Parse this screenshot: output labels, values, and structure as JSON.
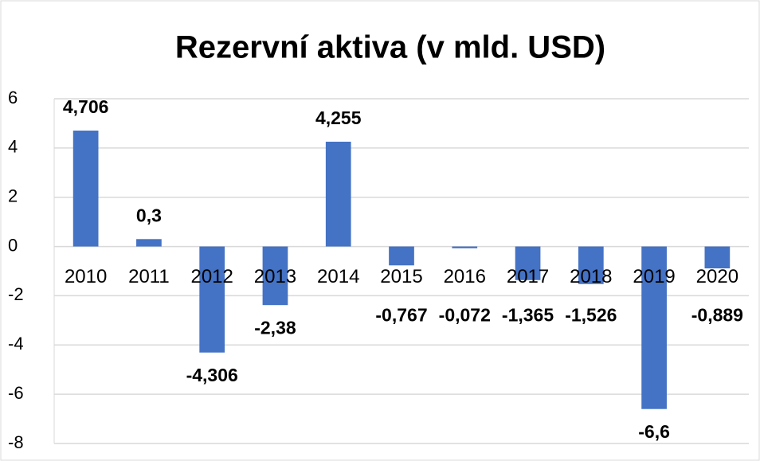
{
  "chart_data": {
    "type": "bar",
    "title": "Rezervní aktiva (v mld. USD)",
    "categories": [
      "2010",
      "2011",
      "2012",
      "2013",
      "2014",
      "2015",
      "2016",
      "2017",
      "2018",
      "2019",
      "2020"
    ],
    "values": [
      4.706,
      0.3,
      -4.306,
      -2.38,
      4.255,
      -0.767,
      -0.072,
      -1.365,
      -1.526,
      -6.6,
      -0.889
    ],
    "value_labels": [
      "4,706",
      "0,3",
      "-4,306",
      "-2,38",
      "4,255",
      "-0,767",
      "-0,072",
      "-1,365",
      "-1,526",
      "-6,6",
      "-0,889"
    ],
    "color": "#4472c4",
    "ylim": [
      -8,
      6
    ],
    "yticks": [
      -8,
      -6,
      -4,
      -2,
      0,
      2,
      4,
      6
    ],
    "grid": true
  }
}
